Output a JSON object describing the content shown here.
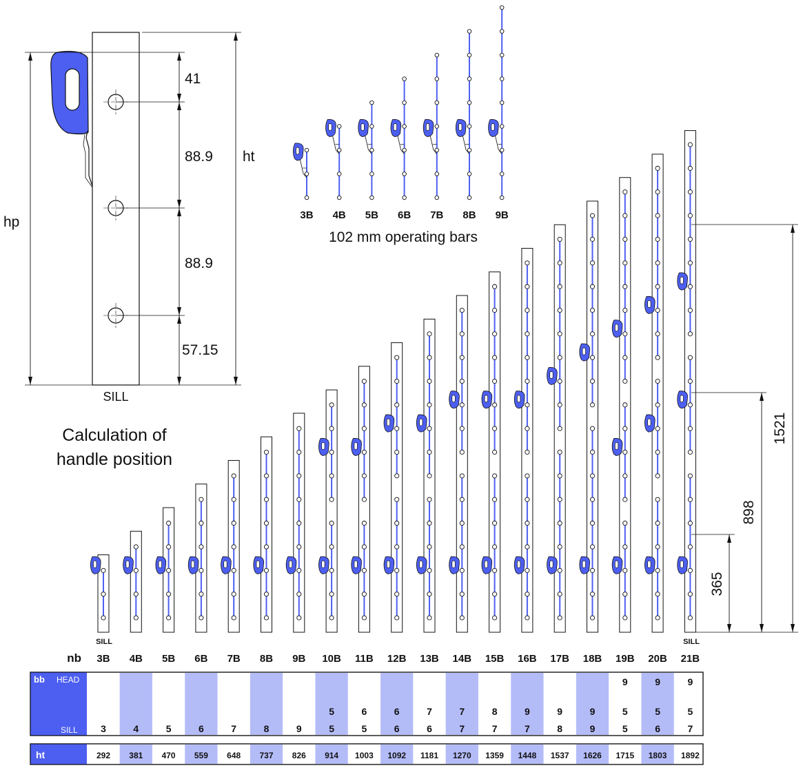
{
  "detail": {
    "dim_top": "41",
    "dim_pitch_1": "88.9",
    "dim_pitch_2": "88.9",
    "dim_bottom": "57.15",
    "ht_label": "ht",
    "hp_label": "hp",
    "sill_label": "SILL"
  },
  "title": {
    "line1": "Calculation of",
    "line2": "handle position"
  },
  "operating_bars": {
    "caption": "102 mm operating bars",
    "labels": [
      "3B",
      "4B",
      "5B",
      "6B",
      "7B",
      "8B",
      "9B"
    ]
  },
  "main": {
    "sill_left": "SILL",
    "sill_right": "SILL",
    "dims": [
      "1521",
      "898",
      "365"
    ]
  },
  "table": {
    "nb_label": "nb",
    "columns": [
      "3B",
      "4B",
      "5B",
      "6B",
      "7B",
      "8B",
      "9B",
      "10B",
      "11B",
      "12B",
      "13B",
      "14B",
      "15B",
      "16B",
      "17B",
      "18B",
      "19B",
      "20B",
      "21B"
    ],
    "bb_label": "bb",
    "head_label": "HEAD",
    "sill_label": "SILL",
    "bb_head": [
      "",
      "",
      "",
      "",
      "",
      "",
      "",
      "",
      "",
      "",
      "",
      "",
      "",
      "",
      "",
      "",
      "9",
      "9",
      "9"
    ],
    "bb_mid": [
      "",
      "",
      "",
      "",
      "",
      "",
      "",
      "5",
      "6",
      "6",
      "7",
      "7",
      "8",
      "9",
      "9",
      "9",
      "5",
      "5",
      "5"
    ],
    "bb_sill": [
      "3",
      "4",
      "5",
      "6",
      "7",
      "8",
      "9",
      "5",
      "5",
      "6",
      "6",
      "7",
      "7",
      "7",
      "8",
      "9",
      "5",
      "6",
      "7"
    ],
    "ht_label": "ht",
    "ht_values": [
      "292",
      "381",
      "470",
      "559",
      "648",
      "737",
      "826",
      "914",
      "1003",
      "1092",
      "1181",
      "1270",
      "1359",
      "1448",
      "1537",
      "1626",
      "1715",
      "1803",
      "1892"
    ],
    "accent": "#4d5ff0",
    "highlight": "#b4bcf8"
  }
}
